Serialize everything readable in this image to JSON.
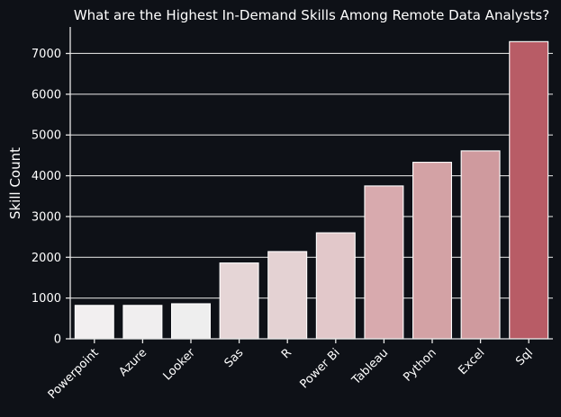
{
  "chart_data": {
    "type": "bar",
    "title": "What are the Highest In-Demand Skills Among Remote Data Analysts?",
    "xlabel": "",
    "ylabel": "Skill Count",
    "categories": [
      "Powerpoint",
      "Azure",
      "Looker",
      "Sas",
      "R",
      "Power Bi",
      "Tableau",
      "Python",
      "Excel",
      "Sql"
    ],
    "values": [
      820,
      820,
      860,
      1860,
      2140,
      2600,
      3750,
      4330,
      4610,
      7290
    ],
    "ylim": [
      0,
      7650
    ],
    "yticks": [
      0,
      1000,
      2000,
      3000,
      4000,
      5000,
      6000,
      7000
    ],
    "grid": "y",
    "colors": [
      "#f2eff0",
      "#f0eeef",
      "#eeeeee",
      "#e5d5d6",
      "#e4d2d3",
      "#e2c8ca",
      "#d8aaae",
      "#d3a2a5",
      "#cf9a9e",
      "#b85c66"
    ],
    "background": "#0e1117"
  }
}
